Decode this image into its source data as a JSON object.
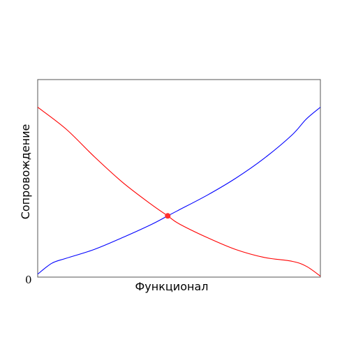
{
  "chart_data": {
    "type": "line",
    "title": "",
    "xlabel": "Функционал",
    "ylabel": "Сопровождение",
    "origin_label": "0",
    "xlim": [
      0,
      1
    ],
    "ylim": [
      0,
      1
    ],
    "grid": false,
    "legend": "none",
    "series": [
      {
        "color": "#0000ff",
        "x": [
          0,
          0.05,
          0.1,
          0.2,
          0.3,
          0.4,
          0.46,
          0.5,
          0.6,
          0.7,
          0.8,
          0.9,
          0.95,
          1.0
        ],
        "y": [
          0.015,
          0.07,
          0.095,
          0.14,
          0.2,
          0.265,
          0.31,
          0.34,
          0.415,
          0.5,
          0.6,
          0.72,
          0.8,
          0.86
        ]
      },
      {
        "color": "#ff0000",
        "x": [
          0,
          0.1,
          0.2,
          0.3,
          0.4,
          0.46,
          0.5,
          0.6,
          0.7,
          0.8,
          0.9,
          0.95,
          1.0
        ],
        "y": [
          0.86,
          0.75,
          0.61,
          0.48,
          0.37,
          0.31,
          0.27,
          0.2,
          0.14,
          0.1,
          0.08,
          0.055,
          0.005
        ]
      }
    ],
    "annotations": [
      {
        "type": "point",
        "x": 0.46,
        "y": 0.31,
        "color": "#ff3030"
      }
    ]
  }
}
